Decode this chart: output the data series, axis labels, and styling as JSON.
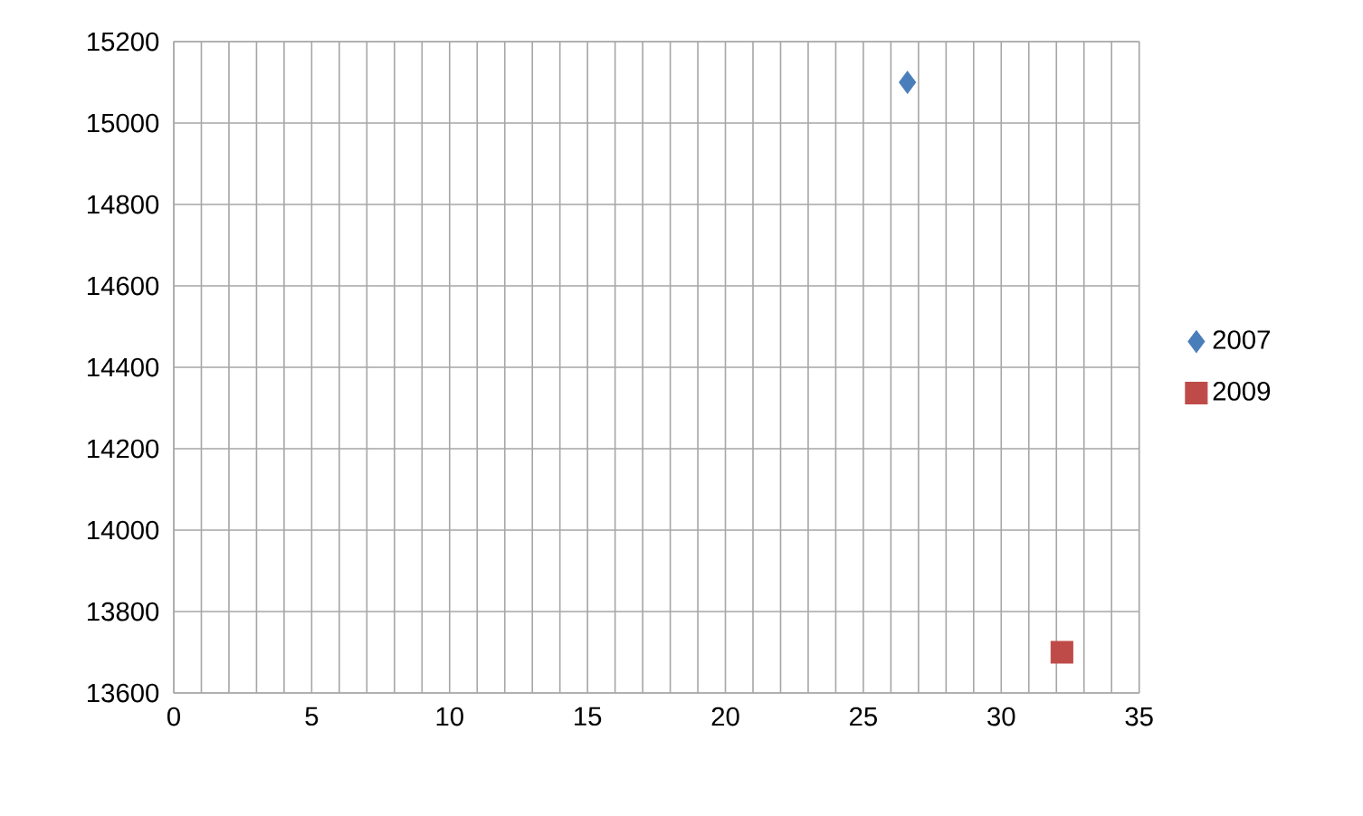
{
  "chart_data": {
    "type": "scatter",
    "series": [
      {
        "name": "2007",
        "color": "#4a7ebb",
        "marker": "diamond",
        "x": [
          26.6
        ],
        "values": [
          15100
        ]
      },
      {
        "name": "2009",
        "color": "#be4b48",
        "marker": "square",
        "x": [
          32.2
        ],
        "values": [
          13700
        ]
      }
    ],
    "xlim": [
      0,
      35
    ],
    "xticks": [
      0,
      5,
      10,
      15,
      20,
      25,
      30,
      35
    ],
    "ylim": [
      13600,
      15200
    ],
    "yticks": [
      13600,
      13800,
      14000,
      14200,
      14400,
      14600,
      14800,
      15000,
      15200
    ],
    "grid": true,
    "legend": "right"
  }
}
